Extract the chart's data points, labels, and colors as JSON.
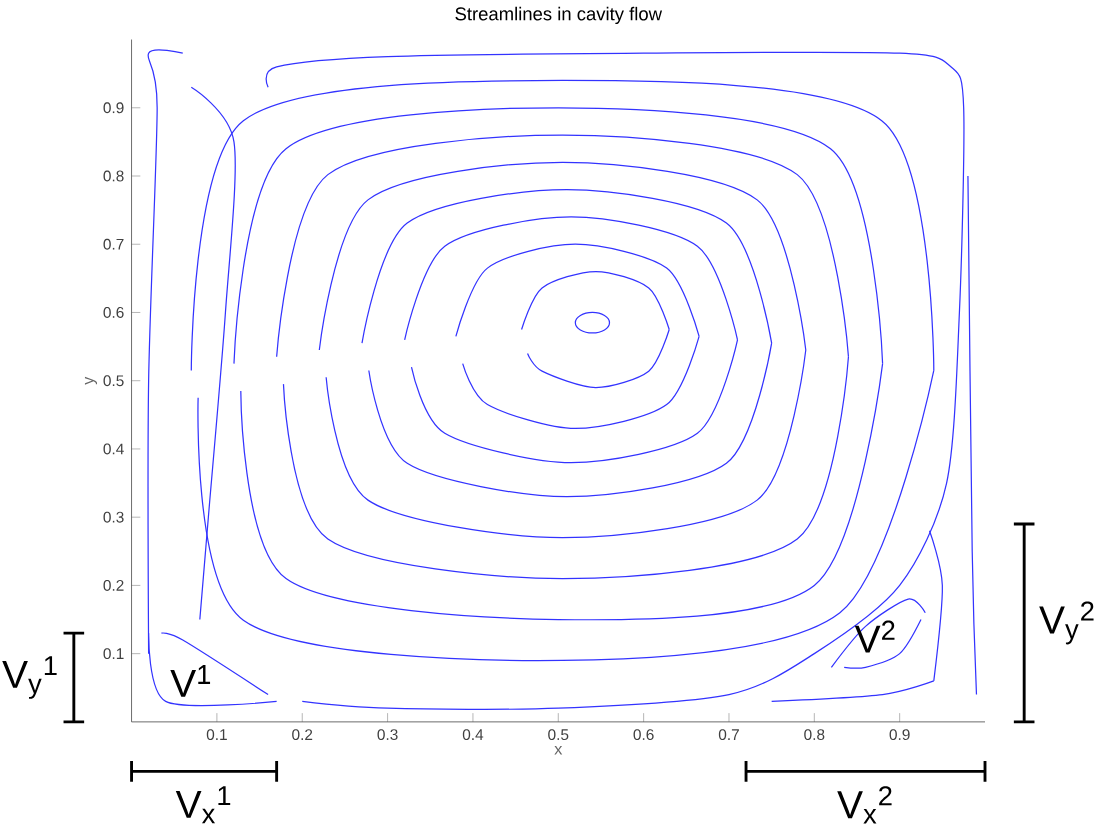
{
  "chart_data": {
    "type": "line",
    "title": "Streamlines in cavity flow",
    "xlabel": "x",
    "ylabel": "y",
    "color": "#3333ff",
    "xlim": [
      0,
      1
    ],
    "ylim": [
      0,
      1
    ],
    "xticks": [
      0.1,
      0.2,
      0.3,
      0.4,
      0.5,
      0.6,
      0.7,
      0.8,
      0.9
    ],
    "yticks": [
      0.1,
      0.2,
      0.3,
      0.4,
      0.5,
      0.6,
      0.7,
      0.8,
      0.9
    ],
    "series": [
      {
        "x": [
          0.457,
          0.481,
          0.544,
          0.606,
          0.63
        ],
        "values": [
          0.575,
          0.636,
          0.66,
          0.636,
          0.575
        ]
      },
      {
        "x": [
          0.63,
          0.606,
          0.544,
          0.481,
          0.464
        ],
        "values": [
          0.575,
          0.514,
          0.49,
          0.514,
          0.54
        ]
      },
      {
        "x": [
          0.38,
          0.417,
          0.52,
          0.627,
          0.665
        ],
        "values": [
          0.565,
          0.665,
          0.7,
          0.665,
          0.565
        ]
      },
      {
        "x": [
          0.665,
          0.627,
          0.52,
          0.417,
          0.388
        ],
        "values": [
          0.565,
          0.465,
          0.43,
          0.465,
          0.525
        ]
      },
      {
        "x": [
          0.32,
          0.367,
          0.515,
          0.663,
          0.71
        ],
        "values": [
          0.56,
          0.697,
          0.74,
          0.697,
          0.56
        ]
      },
      {
        "x": [
          0.71,
          0.663,
          0.515,
          0.367,
          0.328
        ],
        "values": [
          0.56,
          0.423,
          0.38,
          0.423,
          0.52
        ]
      },
      {
        "x": [
          0.27,
          0.323,
          0.51,
          0.697,
          0.75
        ],
        "values": [
          0.555,
          0.731,
          0.78,
          0.731,
          0.555
        ]
      },
      {
        "x": [
          0.75,
          0.697,
          0.51,
          0.323,
          0.278
        ],
        "values": [
          0.555,
          0.379,
          0.33,
          0.379,
          0.515
        ]
      },
      {
        "x": [
          0.22,
          0.277,
          0.505,
          0.733,
          0.79
        ],
        "values": [
          0.545,
          0.765,
          0.82,
          0.765,
          0.545
        ]
      },
      {
        "x": [
          0.79,
          0.733,
          0.505,
          0.277,
          0.228
        ],
        "values": [
          0.545,
          0.325,
          0.27,
          0.325,
          0.505
        ]
      },
      {
        "x": [
          0.17,
          0.23,
          0.505,
          0.78,
          0.84
        ],
        "values": [
          0.535,
          0.802,
          0.86,
          0.802,
          0.535
        ]
      },
      {
        "x": [
          0.84,
          0.78,
          0.505,
          0.23,
          0.178
        ],
        "values": [
          0.535,
          0.268,
          0.21,
          0.268,
          0.495
        ]
      },
      {
        "x": [
          0.12,
          0.181,
          0.5,
          0.819,
          0.88
        ],
        "values": [
          0.525,
          0.84,
          0.9,
          0.84,
          0.525
        ]
      },
      {
        "x": [
          0.88,
          0.8,
          0.5,
          0.181,
          0.128
        ],
        "values": [
          0.525,
          0.2,
          0.15,
          0.21,
          0.485
        ]
      },
      {
        "x": [
          0.07,
          0.131,
          0.505,
          0.879,
          0.94
        ],
        "values": [
          0.515,
          0.881,
          0.94,
          0.881,
          0.515
        ]
      },
      {
        "x": [
          0.94,
          0.83,
          0.505,
          0.131,
          0.078
        ],
        "values": [
          0.515,
          0.16,
          0.09,
          0.149,
          0.475
        ]
      },
      {
        "x": [
          0.16,
          0.17,
          0.3,
          0.6,
          0.9,
          0.96,
          0.975,
          0.97,
          0.955,
          0.9,
          0.8,
          0.7,
          0.5,
          0.3,
          0.2
        ],
        "values": [
          0.93,
          0.96,
          0.975,
          0.98,
          0.98,
          0.96,
          0.9,
          0.6,
          0.35,
          0.2,
          0.1,
          0.04,
          0.02,
          0.02,
          0.03
        ]
      },
      {
        "x": [
          0.02,
          0.02,
          0.03,
          0.02,
          0.06
        ],
        "values": [
          0.1,
          0.5,
          0.9,
          0.98,
          0.98
        ]
      },
      {
        "x": [
          0.07,
          0.12,
          0.11,
          0.09,
          0.08
        ],
        "values": [
          0.93,
          0.85,
          0.6,
          0.3,
          0.15
        ]
      },
      {
        "x": [
          0.02,
          0.04,
          0.17
        ],
        "values": [
          0.13,
          0.03,
          0.03
        ]
      },
      {
        "x": [
          0.035,
          0.06,
          0.16
        ],
        "values": [
          0.13,
          0.12,
          0.04
        ]
      },
      {
        "x": [
          0.75,
          0.88,
          0.94
        ],
        "values": [
          0.03,
          0.04,
          0.06
        ]
      },
      {
        "x": [
          0.94,
          0.95,
          0.935
        ],
        "values": [
          0.06,
          0.2,
          0.28
        ]
      },
      {
        "x": [
          0.82,
          0.86,
          0.91,
          0.93
        ],
        "values": [
          0.08,
          0.14,
          0.18,
          0.16
        ]
      },
      {
        "x": [
          0.835,
          0.86,
          0.9,
          0.925
        ],
        "values": [
          0.08,
          0.08,
          0.1,
          0.15
        ]
      },
      {
        "x": [
          0.98,
          0.985,
          0.99
        ],
        "values": [
          0.8,
          0.25,
          0.04
        ]
      }
    ],
    "annotations": [
      "V$^{1}$",
      "V$^{2}$",
      "V$_{x}$$^{1}$",
      "V$_{x}$$^{2}$",
      "V$_{y}$$^{1}$",
      "V$_{y}$$^{2}$"
    ]
  }
}
